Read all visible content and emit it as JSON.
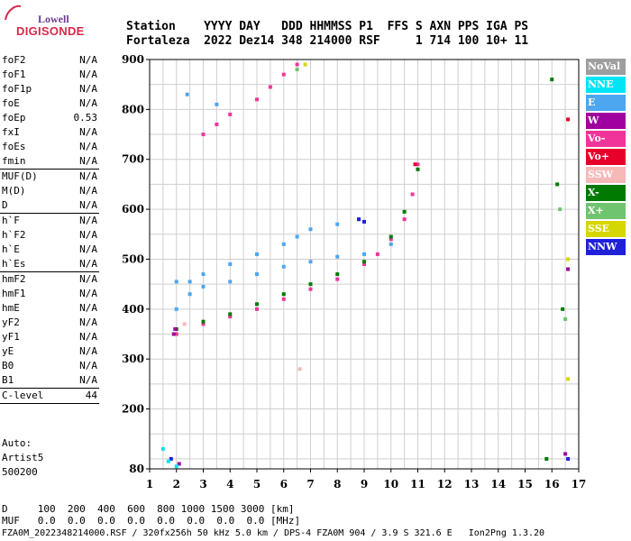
{
  "logo": {
    "line1": "Lowell",
    "line2": "DIGISONDE"
  },
  "header": {
    "line1": "Station    YYYY DAY   DDD HHMMSS P1  FFS S AXN PPS IGA PS",
    "line2": "Fortaleza  2022 Dez14 348 214000 RSF     1 714 100 10+ 11"
  },
  "params": {
    "group1": [
      {
        "name": "foF2",
        "value": "N/A"
      },
      {
        "name": "foF1",
        "value": "N/A"
      },
      {
        "name": "foF1p",
        "value": "N/A"
      },
      {
        "name": "foE",
        "value": "N/A"
      },
      {
        "name": "foEp",
        "value": "0.53"
      },
      {
        "name": "fxI",
        "value": "N/A"
      },
      {
        "name": "foEs",
        "value": "N/A"
      },
      {
        "name": "fmin",
        "value": "N/A"
      }
    ],
    "group2": [
      {
        "name": "MUF(D)",
        "value": "N/A"
      },
      {
        "name": "M(D)",
        "value": "N/A"
      },
      {
        "name": "D",
        "value": "N/A"
      }
    ],
    "group3": [
      {
        "name": "h`F",
        "value": "N/A"
      },
      {
        "name": "h`F2",
        "value": "N/A"
      },
      {
        "name": "h`E",
        "value": "N/A"
      },
      {
        "name": "h`Es",
        "value": "N/A"
      }
    ],
    "group4": [
      {
        "name": "hmF2",
        "value": "N/A"
      },
      {
        "name": "hmF1",
        "value": "N/A"
      },
      {
        "name": "hmE",
        "value": "N/A"
      },
      {
        "name": "yF2",
        "value": "N/A"
      },
      {
        "name": "yF1",
        "value": "N/A"
      },
      {
        "name": "yE",
        "value": "N/A"
      },
      {
        "name": "B0",
        "value": "N/A"
      },
      {
        "name": "B1",
        "value": "N/A"
      }
    ],
    "group5": [
      {
        "name": "C-level",
        "value": "44"
      }
    ]
  },
  "auto": {
    "line1": "Auto:",
    "line2": "Artist5",
    "line3": "500200"
  },
  "bottom": {
    "line1": "D     100  200  400  600  800 1000 1500 3000 [km]",
    "line2": "MUF   0.0  0.0  0.0  0.0  0.0  0.0  0.0  0.0 [MHz]",
    "line3": "FZA0M_2022348214000.RSF / 320fx256h 50 kHz 5.0 km / DPS-4 FZA0M 904 / 3.9 S 321.6 E   Ion2Png 1.3.20"
  },
  "legend": [
    {
      "label": "NoVal",
      "color": "#9e9e9e"
    },
    {
      "label": "NNE",
      "color": "#00e5f5"
    },
    {
      "label": "E",
      "color": "#4da6f0"
    },
    {
      "label": "W",
      "color": "#a000a0"
    },
    {
      "label": "Vo-",
      "color": "#f0359a"
    },
    {
      "label": "Vo+",
      "color": "#e8002a"
    },
    {
      "label": "SSW",
      "color": "#f7b8b8"
    },
    {
      "label": "X-",
      "color": "#007a00"
    },
    {
      "label": "X+",
      "color": "#6fc46f"
    },
    {
      "label": "SSE",
      "color": "#d6d600"
    },
    {
      "label": "NNW",
      "color": "#2020d8"
    }
  ],
  "chart_data": {
    "type": "scatter",
    "title": "",
    "xlabel": "",
    "ylabel": "",
    "xlim": [
      1,
      17
    ],
    "ylim": [
      80,
      900
    ],
    "x_ticks": [
      1,
      2,
      3,
      4,
      5,
      6,
      7,
      8,
      9,
      10,
      11,
      12,
      13,
      14,
      15,
      16,
      17
    ],
    "y_ticks": [
      80,
      200,
      300,
      400,
      500,
      600,
      700,
      800,
      900
    ],
    "grid": true,
    "series": [
      {
        "name": "E",
        "color": "#4da6f0",
        "points": [
          [
            2.0,
            400
          ],
          [
            2.5,
            430
          ],
          [
            3,
            445
          ],
          [
            4,
            455
          ],
          [
            5,
            470
          ],
          [
            6,
            485
          ],
          [
            7,
            495
          ],
          [
            8,
            505
          ],
          [
            9,
            510
          ],
          [
            10,
            530
          ],
          [
            2.0,
            455
          ],
          [
            2.5,
            455
          ],
          [
            3,
            470
          ],
          [
            4,
            490
          ],
          [
            5,
            510
          ],
          [
            6,
            530
          ],
          [
            6.5,
            545
          ],
          [
            7,
            560
          ],
          [
            8,
            570
          ],
          [
            8.8,
            580
          ],
          [
            2.4,
            830
          ],
          [
            3.5,
            810
          ]
        ]
      },
      {
        "name": "Vo-",
        "color": "#f0359a",
        "points": [
          [
            2.0,
            350
          ],
          [
            3,
            370
          ],
          [
            4,
            385
          ],
          [
            5,
            400
          ],
          [
            6,
            420
          ],
          [
            7,
            440
          ],
          [
            8,
            460
          ],
          [
            9,
            490
          ],
          [
            9.5,
            510
          ],
          [
            10,
            540
          ],
          [
            10.5,
            580
          ],
          [
            10.8,
            630
          ],
          [
            11,
            690
          ],
          [
            3,
            750
          ],
          [
            3.5,
            770
          ],
          [
            4,
            790
          ],
          [
            5,
            820
          ],
          [
            5.5,
            845
          ],
          [
            6,
            870
          ],
          [
            6.5,
            890
          ]
        ]
      },
      {
        "name": "X-",
        "color": "#007a00",
        "points": [
          [
            2.0,
            360
          ],
          [
            3,
            375
          ],
          [
            4,
            390
          ],
          [
            5,
            410
          ],
          [
            6,
            430
          ],
          [
            7,
            450
          ],
          [
            8,
            470
          ],
          [
            9,
            495
          ],
          [
            10,
            545
          ],
          [
            10.5,
            595
          ],
          [
            11,
            680
          ],
          [
            16,
            860
          ],
          [
            16.2,
            650
          ],
          [
            16.4,
            400
          ],
          [
            15.8,
            100
          ]
        ]
      },
      {
        "name": "W",
        "color": "#a000a0",
        "points": [
          [
            1.9,
            350
          ],
          [
            1.95,
            360
          ],
          [
            2.1,
            90
          ],
          [
            16.5,
            110
          ],
          [
            16.6,
            480
          ]
        ]
      },
      {
        "name": "NNW",
        "color": "#2020d8",
        "points": [
          [
            8.8,
            580
          ],
          [
            9.0,
            575
          ],
          [
            1.8,
            100
          ],
          [
            16.6,
            100
          ]
        ]
      },
      {
        "name": "X+",
        "color": "#6fc46f",
        "points": [
          [
            6.5,
            880
          ],
          [
            16.3,
            600
          ],
          [
            16.5,
            380
          ]
        ]
      },
      {
        "name": "SSE",
        "color": "#d6d600",
        "points": [
          [
            6.8,
            890
          ],
          [
            16.6,
            500
          ],
          [
            16.6,
            260
          ]
        ]
      },
      {
        "name": "NNE",
        "color": "#00e5f5",
        "points": [
          [
            1.5,
            120
          ],
          [
            1.7,
            95
          ],
          [
            2.0,
            85
          ]
        ]
      },
      {
        "name": "Vo+",
        "color": "#e8002a",
        "points": [
          [
            10.9,
            690
          ],
          [
            16.6,
            780
          ]
        ]
      },
      {
        "name": "SSW",
        "color": "#f7b8b8",
        "points": [
          [
            6.6,
            280
          ],
          [
            2.3,
            370
          ]
        ]
      }
    ]
  }
}
